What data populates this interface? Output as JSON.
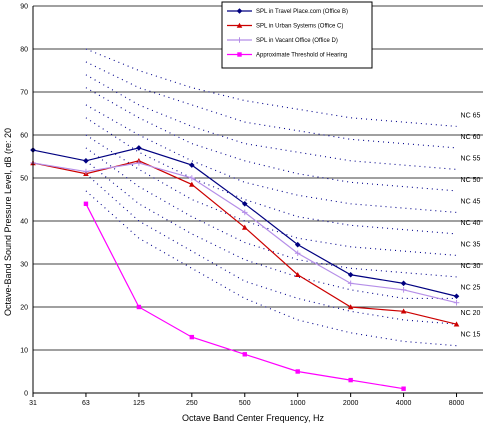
{
  "chart_data": {
    "type": "line",
    "title": "",
    "xlabel": "Octave Band Center Frequency, Hz",
    "ylabel": "Octave-Band Sound Pressure Level, dB (re: 20",
    "categories": [
      "31",
      "63",
      "125",
      "250",
      "500",
      "1000",
      "2000",
      "4000",
      "8000"
    ],
    "ylim": [
      0,
      90
    ],
    "yticks": [
      "0",
      "10",
      "20",
      "30",
      "40",
      "50",
      "60",
      "70",
      "80",
      "90"
    ],
    "grid": true,
    "legend_position": "top-right",
    "series": [
      {
        "name": "SPL in Travel Place.com (Office B)",
        "color": "#000080",
        "marker": "diamond",
        "values": [
          56.5,
          54,
          57,
          53,
          44,
          34.5,
          27.5,
          25.5,
          22.5
        ]
      },
      {
        "name": "SPL in Urban Systems (Office C)",
        "color": "#cc0000",
        "marker": "triangle",
        "values": [
          53.5,
          51,
          54,
          48.5,
          38.5,
          27.5,
          20,
          19,
          16
        ]
      },
      {
        "name": "SPL in Vacant Office (Office D)",
        "color": "#b58ee8",
        "marker": "plus",
        "values": [
          53.5,
          51.5,
          53.5,
          50,
          42,
          32.5,
          25.5,
          24,
          21
        ]
      },
      {
        "name": "Approximate Threshold of Hearing",
        "color": "#ff00ff",
        "marker": "square",
        "values": [
          null,
          44,
          20,
          13,
          9,
          5,
          3,
          1,
          null
        ]
      }
    ],
    "nc_curves": [
      {
        "name": "NC 65",
        "color": "#00008b",
        "values": [
          null,
          80,
          75,
          71,
          68,
          66,
          64,
          63,
          62
        ]
      },
      {
        "name": "NC 60",
        "color": "#00008b",
        "values": [
          null,
          77,
          71,
          67,
          63,
          61,
          59,
          58,
          57
        ]
      },
      {
        "name": "NC 55",
        "color": "#00008b",
        "values": [
          null,
          74,
          67,
          62,
          58,
          56,
          54,
          53,
          52
        ]
      },
      {
        "name": "NC 50",
        "color": "#00008b",
        "values": [
          null,
          71,
          64,
          58,
          54,
          51,
          49,
          48,
          47
        ]
      },
      {
        "name": "NC 45",
        "color": "#00008b",
        "values": [
          null,
          67,
          60,
          54,
          49,
          46,
          44,
          43,
          42
        ]
      },
      {
        "name": "NC 40",
        "color": "#00008b",
        "values": [
          null,
          64,
          56,
          50,
          45,
          41,
          39,
          38,
          37
        ]
      },
      {
        "name": "NC 35",
        "color": "#00008b",
        "values": [
          null,
          60,
          52,
          45,
          40,
          36,
          34,
          33,
          32
        ]
      },
      {
        "name": "NC 30",
        "color": "#00008b",
        "values": [
          null,
          57,
          48,
          41,
          35,
          31,
          29,
          28,
          27
        ]
      },
      {
        "name": "NC 25",
        "color": "#00008b",
        "values": [
          null,
          54,
          44,
          37,
          31,
          27,
          24,
          22,
          22
        ]
      },
      {
        "name": "NC 20",
        "color": "#00008b",
        "values": [
          null,
          51,
          40,
          33,
          26,
          22,
          19,
          17,
          16
        ]
      },
      {
        "name": "NC 15",
        "color": "#00008b",
        "values": [
          null,
          47,
          36,
          29,
          22,
          17,
          14,
          12,
          11
        ]
      }
    ]
  }
}
